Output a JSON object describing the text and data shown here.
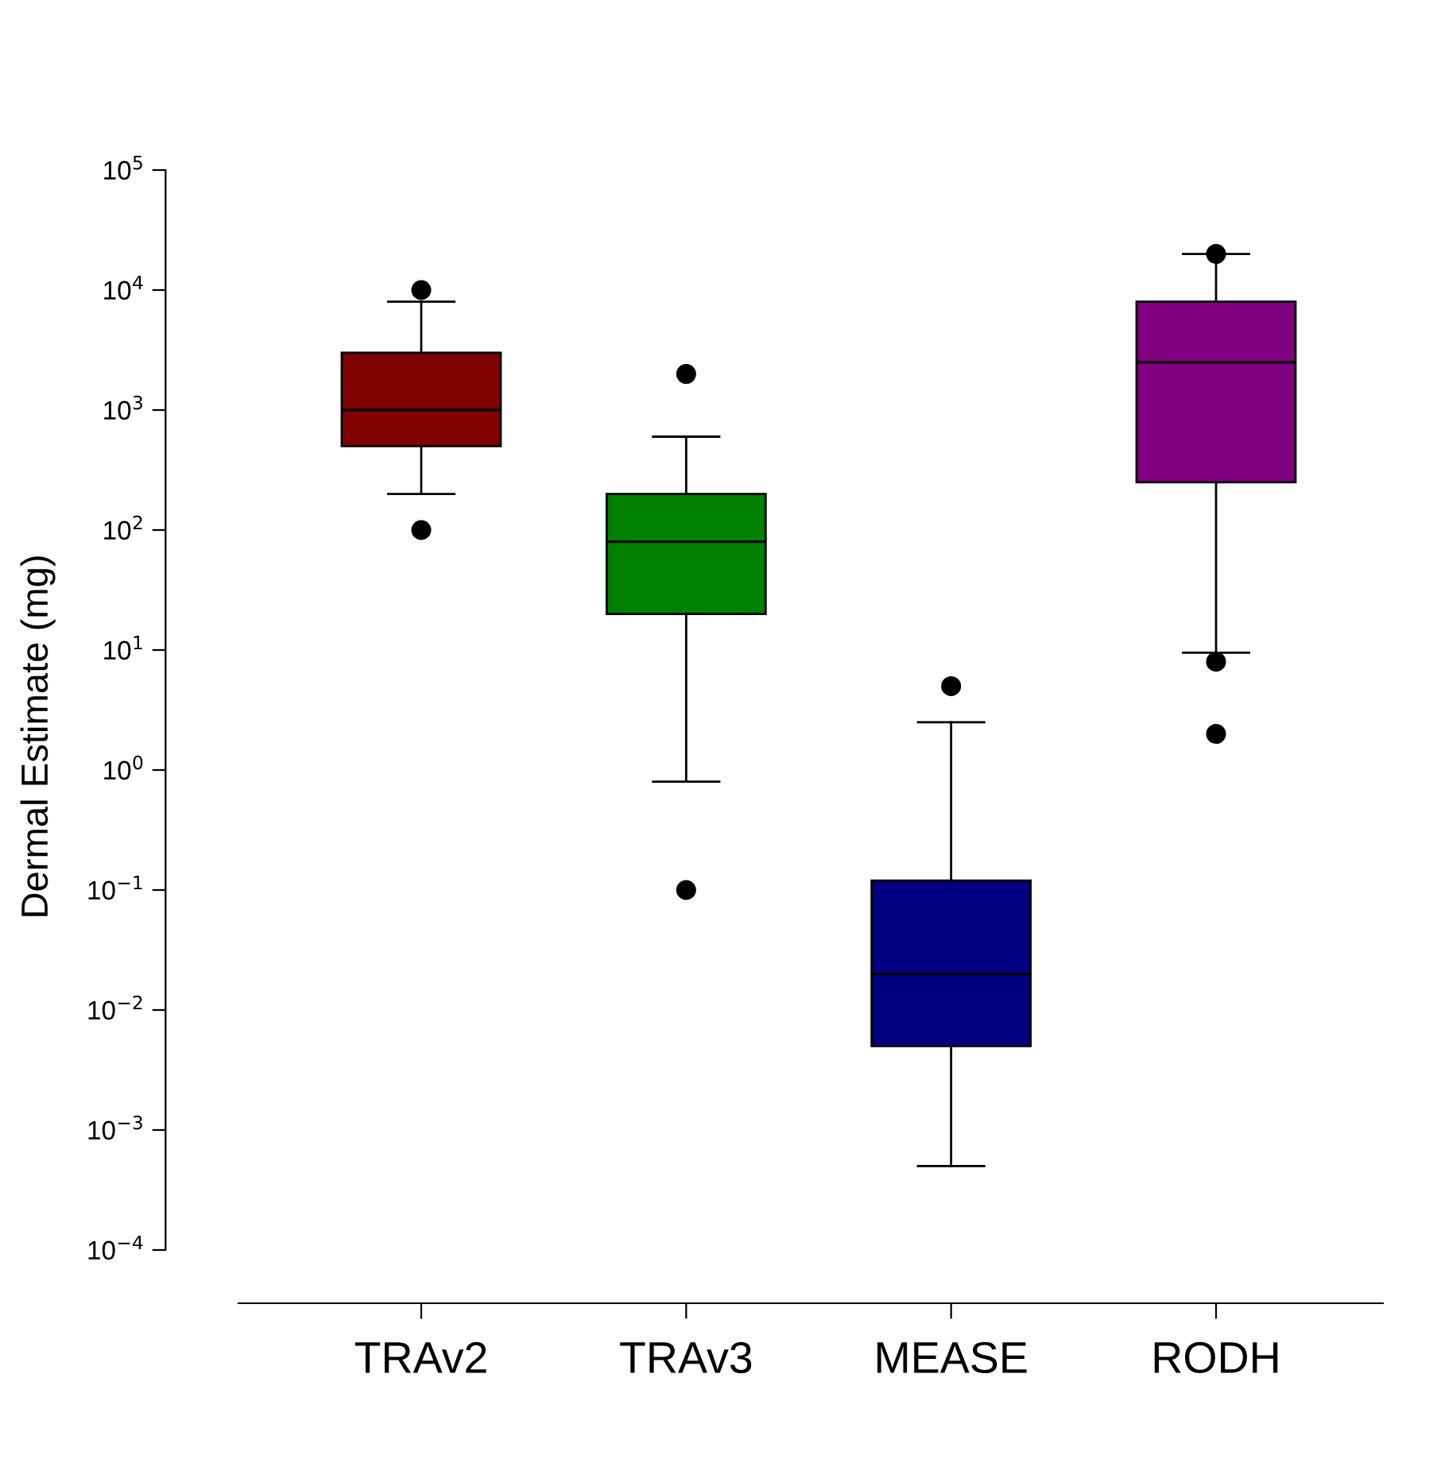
{
  "chart_data": {
    "type": "box",
    "ylabel": "Dermal Estimate (mg)",
    "log": "y",
    "categories": [
      "TRAv2",
      "TRAv3",
      "MEASE",
      "RODH"
    ],
    "colors": [
      "#800000",
      "#008000",
      "#000080",
      "#800080"
    ],
    "boxes": [
      {
        "low": 200,
        "q1": 500,
        "median": 1000,
        "q3": 3000,
        "high": 8000,
        "outliers": [
          10000,
          100
        ]
      },
      {
        "low": 0.8,
        "q1": 20,
        "median": 80,
        "q3": 200,
        "high": 600,
        "outliers": [
          2000,
          0.1
        ]
      },
      {
        "low": 0.0005,
        "q1": 0.005,
        "median": 0.02,
        "q3": 0.12,
        "high": 2.5,
        "outliers": [
          5
        ]
      },
      {
        "low": 9.5,
        "q1": 250,
        "median": 2500,
        "q3": 8000,
        "high": 20000,
        "outliers": [
          20000,
          8,
          2
        ]
      }
    ],
    "ylim": [
      3.6e-05,
      100000
    ],
    "yticks": [
      {
        "value": 0.0001,
        "label": "10$^{−4}$"
      },
      {
        "value": 0.001,
        "label": "10$^{−3}$"
      },
      {
        "value": 0.01,
        "label": "10$^{−2}$"
      },
      {
        "value": 0.1,
        "label": "10$^{−1}$"
      },
      {
        "value": 1,
        "label": "10$^{0}$"
      },
      {
        "value": 10,
        "label": "10$^{1}$"
      },
      {
        "value": 100,
        "label": "10$^{2}$"
      },
      {
        "value": 1000,
        "label": "10$^{3}$"
      },
      {
        "value": 10000,
        "label": "10$^{4}$"
      },
      {
        "value": 100000,
        "label": "10$^{5}$"
      }
    ],
    "grid": false
  }
}
